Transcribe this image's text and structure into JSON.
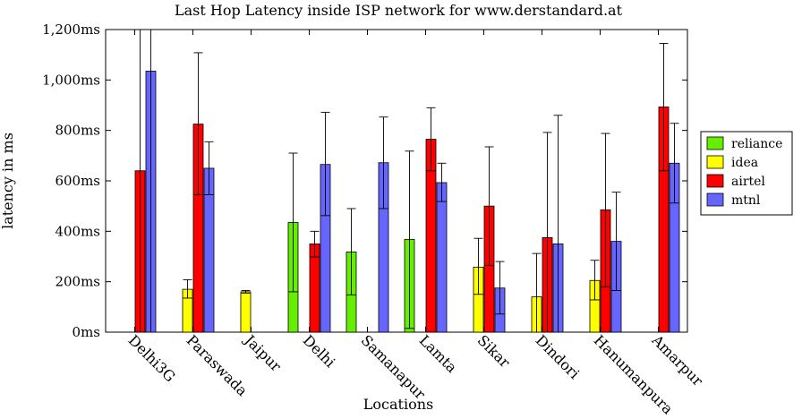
{
  "chart_data": {
    "type": "bar",
    "title": "Last Hop Latency inside ISP network for www.derstandard.at",
    "xlabel": "Locations",
    "ylabel": "latency in ms",
    "ylim": [
      0,
      1200
    ],
    "yticks": [
      0,
      200,
      400,
      600,
      800,
      1000,
      1200
    ],
    "ytick_labels": [
      "0ms",
      "200ms",
      "400ms",
      "600ms",
      "800ms",
      "1,000ms",
      "1,200ms"
    ],
    "categories": [
      "Delhi3G",
      "Paraswada",
      "Jaipur",
      "Delhi",
      "Samanapur",
      "Lamta",
      "Sikar",
      "Dindori",
      "Hanumanpura",
      "Amarpur"
    ],
    "legend_position": "right",
    "grid": false,
    "series": [
      {
        "name": "reliance",
        "color": "#66ee00",
        "values": [
          null,
          null,
          null,
          435,
          318,
          368,
          null,
          null,
          null,
          null
        ],
        "err_low": [
          null,
          null,
          null,
          160,
          148,
          15,
          null,
          null,
          null,
          null
        ],
        "err_high": [
          null,
          null,
          null,
          710,
          490,
          718,
          null,
          null,
          null,
          null
        ]
      },
      {
        "name": "idea",
        "color": "#ffff00",
        "values": [
          null,
          170,
          160,
          null,
          null,
          null,
          258,
          140,
          205,
          null
        ],
        "err_low": [
          null,
          135,
          155,
          null,
          null,
          null,
          150,
          0,
          128,
          null
        ],
        "err_high": [
          null,
          208,
          165,
          null,
          null,
          null,
          372,
          312,
          285,
          null
        ]
      },
      {
        "name": "airtel",
        "color": "#ff0000",
        "values": [
          640,
          825,
          null,
          350,
          null,
          765,
          500,
          375,
          485,
          893
        ],
        "err_low": [
          0,
          545,
          null,
          298,
          null,
          640,
          265,
          0,
          180,
          640
        ],
        "err_high": [
          1200,
          1108,
          null,
          400,
          null,
          890,
          735,
          792,
          788,
          1145
        ]
      },
      {
        "name": "mtnl",
        "color": "#6666ff",
        "values": [
          1035,
          650,
          null,
          665,
          672,
          593,
          175,
          350,
          360,
          670
        ],
        "err_low": [
          0,
          545,
          null,
          462,
          490,
          518,
          72,
          0,
          165,
          512
        ],
        "err_high": [
          1200,
          755,
          null,
          872,
          853,
          670,
          280,
          860,
          555,
          828
        ]
      }
    ]
  }
}
